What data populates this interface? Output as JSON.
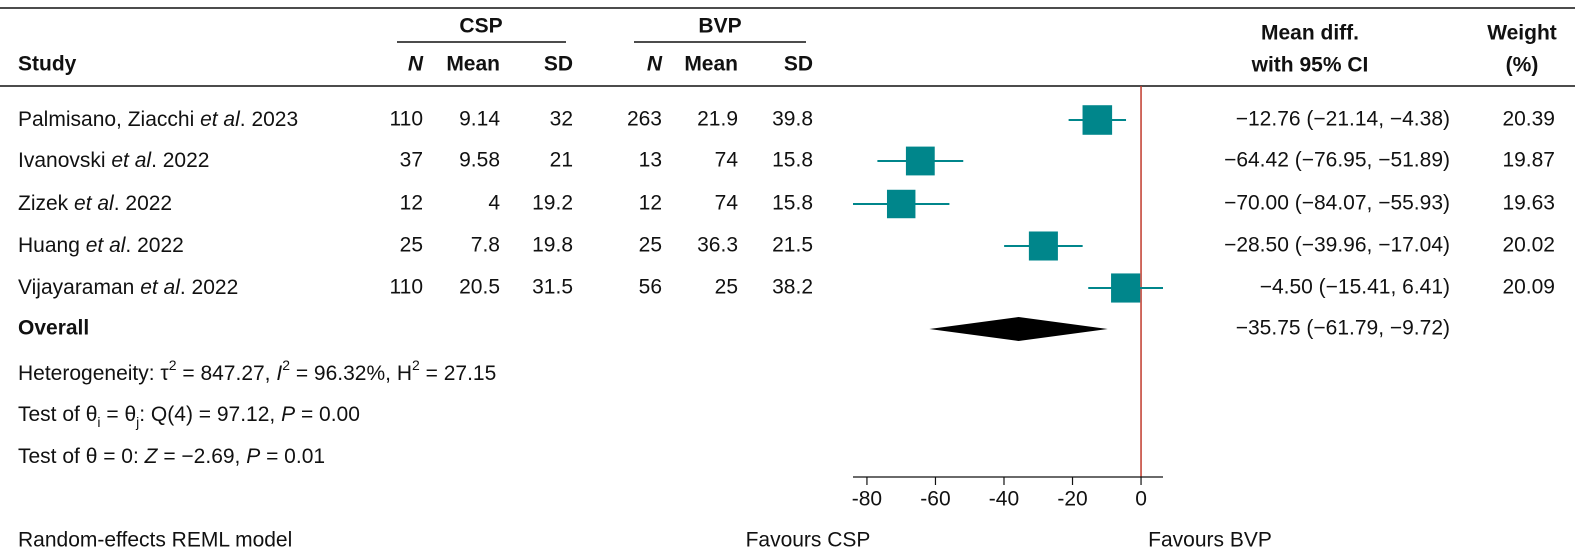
{
  "chart_data": {
    "type": "forest",
    "headers": {
      "study": "Study",
      "groups": [
        {
          "name": "CSP",
          "columns": [
            "N",
            "Mean",
            "SD"
          ]
        },
        {
          "name": "BVP",
          "columns": [
            "N",
            "Mean",
            "SD"
          ]
        }
      ],
      "effect": [
        "Mean diff.",
        "with 95% CI"
      ],
      "weight": [
        "Weight",
        "(%)"
      ]
    },
    "studies": [
      {
        "label": [
          "Palmisano, Ziacchi ",
          "et al",
          ". 2023"
        ],
        "groups": [
          [
            110,
            9.14,
            32
          ],
          [
            263,
            21.9,
            39.8
          ]
        ],
        "mean_diff": -12.76,
        "ci": [
          -21.14,
          -4.38
        ],
        "ci_label": "−12.76 (−21.14, −4.38)",
        "weight": 20.39
      },
      {
        "label": [
          "Ivanovski ",
          "et al",
          ". 2022"
        ],
        "groups": [
          [
            37,
            9.58,
            21
          ],
          [
            13,
            74,
            15.8
          ]
        ],
        "mean_diff": -64.42,
        "ci": [
          -76.95,
          -51.89
        ],
        "ci_label": "−64.42 (−76.95, −51.89)",
        "weight": 19.87
      },
      {
        "label": [
          "Zizek ",
          "et al",
          ". 2022"
        ],
        "groups": [
          [
            12,
            4,
            19.2
          ],
          [
            12,
            74,
            15.8
          ]
        ],
        "mean_diff": -70.0,
        "ci": [
          -84.07,
          -55.93
        ],
        "ci_label": "−70.00 (−84.07, −55.93)",
        "weight": 19.63
      },
      {
        "label": [
          "Huang ",
          "et al",
          ". 2022"
        ],
        "groups": [
          [
            25,
            7.8,
            19.8
          ],
          [
            25,
            36.3,
            21.5
          ]
        ],
        "mean_diff": -28.5,
        "ci": [
          -39.96,
          -17.04
        ],
        "ci_label": "−28.50 (−39.96, −17.04)",
        "weight": 20.02
      },
      {
        "label": [
          "Vijayaraman ",
          "et al",
          ". 2022"
        ],
        "groups": [
          [
            110,
            20.5,
            31.5
          ],
          [
            56,
            25,
            38.2
          ]
        ],
        "mean_diff": -4.5,
        "ci": [
          -15.41,
          6.41
        ],
        "ci_label": "−4.50 (−15.41, 6.41)",
        "weight": 20.09
      }
    ],
    "overall": {
      "label": "Overall",
      "mean_diff": -35.75,
      "ci": [
        -61.79,
        -9.72
      ],
      "ci_label": "−35.75 (−61.79, −9.72)"
    },
    "heterogeneity": [
      "Heterogeneity: τ",
      "2",
      " = 847.27, ",
      "I",
      "2",
      " = 96.32%, H",
      "2",
      " = 27.15"
    ],
    "test_equal": [
      "Test of θ",
      "i",
      " = θ",
      "j",
      ": Q(4) = 97.12, ",
      "P",
      " = 0.00"
    ],
    "test_zero": [
      "Test of θ = 0: ",
      "Z",
      " = −2.69, ",
      "P",
      " = 0.01"
    ],
    "xlim": [
      -84.07,
      6.41
    ],
    "xticks": [
      -80,
      -60,
      -40,
      -20,
      0
    ],
    "reference_line": 0,
    "reference_color": "#c0392b",
    "box_color": "#00868b",
    "diamond_color": "#000000",
    "x_labels": [
      "Favours CSP",
      "Favours BVP"
    ],
    "note": "Random-effects REML model"
  }
}
